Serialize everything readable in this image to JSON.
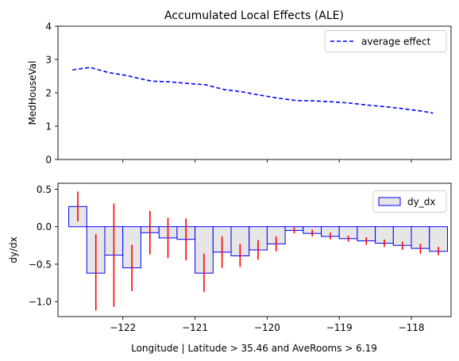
{
  "chart_data": [
    {
      "type": "line",
      "title": "Accumulated Local Effects (ALE)",
      "ylabel": "MedHouseVal",
      "xlabel": "",
      "xlim": [
        -122.9,
        -117.45
      ],
      "ylim": [
        0,
        4
      ],
      "yticks": [
        0,
        1,
        2,
        3,
        4
      ],
      "xticks": [
        -122,
        -121,
        -120,
        -119,
        -118
      ],
      "grid": false,
      "legend": "top-right",
      "series": [
        {
          "name": "average effect",
          "color": "#0000ff",
          "style": "dashed",
          "x": [
            -122.7,
            -122.45,
            -122.2,
            -121.95,
            -121.75,
            -121.6,
            -121.35,
            -121.1,
            -120.85,
            -120.6,
            -120.35,
            -120.1,
            -119.85,
            -119.6,
            -119.35,
            -119.1,
            -118.85,
            -118.6,
            -118.35,
            -118.1,
            -117.85,
            -117.7
          ],
          "y": [
            2.69,
            2.76,
            2.61,
            2.52,
            2.42,
            2.35,
            2.33,
            2.28,
            2.24,
            2.1,
            2.03,
            1.93,
            1.84,
            1.77,
            1.76,
            1.73,
            1.69,
            1.63,
            1.58,
            1.52,
            1.45,
            1.39
          ]
        }
      ]
    },
    {
      "type": "bar",
      "ylabel": "dy/dx",
      "xlabel": "Longitude | Latitude > 35.46 and AveRooms > 6.19",
      "xlim": [
        -122.9,
        -117.45
      ],
      "ylim": [
        -1.2,
        0.58
      ],
      "yticks": [
        0.5,
        0.0,
        -0.5,
        -1.0
      ],
      "ytick_labels": [
        "0.5",
        "0.0",
        "−0.5",
        "−1.0"
      ],
      "xticks": [
        -122,
        -121,
        -120,
        -119,
        -118
      ],
      "xtick_labels": [
        "−122",
        "−121",
        "−120",
        "−119",
        "−118"
      ],
      "grid": false,
      "legend": "top-right",
      "series": [
        {
          "name": "dy_dx",
          "fill": "#e6e6e6",
          "edge": "#0000ff",
          "error_color": "#ff0000",
          "bars": [
            {
              "x0": -122.75,
              "x1": -122.5,
              "value": 0.27,
              "low": 0.07,
              "high": 0.47
            },
            {
              "x0": -122.5,
              "x1": -122.25,
              "value": -0.62,
              "low": -1.12,
              "high": -0.1
            },
            {
              "x0": -122.25,
              "x1": -122.0,
              "value": -0.38,
              "low": -1.07,
              "high": 0.31
            },
            {
              "x0": -122.0,
              "x1": -121.75,
              "value": -0.55,
              "low": -0.86,
              "high": -0.24
            },
            {
              "x0": -121.75,
              "x1": -121.5,
              "value": -0.08,
              "low": -0.37,
              "high": 0.21
            },
            {
              "x0": -121.5,
              "x1": -121.25,
              "value": -0.15,
              "low": -0.42,
              "high": 0.12
            },
            {
              "x0": -121.25,
              "x1": -121.0,
              "value": -0.17,
              "low": -0.45,
              "high": 0.11
            },
            {
              "x0": -121.0,
              "x1": -120.75,
              "value": -0.62,
              "low": -0.87,
              "high": -0.36
            },
            {
              "x0": -120.75,
              "x1": -120.5,
              "value": -0.34,
              "low": -0.55,
              "high": -0.13
            },
            {
              "x0": -120.5,
              "x1": -120.25,
              "value": -0.39,
              "low": -0.54,
              "high": -0.23
            },
            {
              "x0": -120.25,
              "x1": -120.0,
              "value": -0.31,
              "low": -0.44,
              "high": -0.18
            },
            {
              "x0": -120.0,
              "x1": -119.75,
              "value": -0.23,
              "low": -0.33,
              "high": -0.13
            },
            {
              "x0": -119.75,
              "x1": -119.5,
              "value": -0.05,
              "low": -0.09,
              "high": -0.01
            },
            {
              "x0": -119.5,
              "x1": -119.25,
              "value": -0.09,
              "low": -0.13,
              "high": -0.04
            },
            {
              "x0": -119.25,
              "x1": -119.0,
              "value": -0.13,
              "low": -0.17,
              "high": -0.08
            },
            {
              "x0": -119.0,
              "x1": -118.75,
              "value": -0.16,
              "low": -0.2,
              "high": -0.12
            },
            {
              "x0": -118.75,
              "x1": -118.5,
              "value": -0.19,
              "low": -0.24,
              "high": -0.14
            },
            {
              "x0": -118.5,
              "x1": -118.25,
              "value": -0.22,
              "low": -0.27,
              "high": -0.17
            },
            {
              "x0": -118.25,
              "x1": -118.0,
              "value": -0.25,
              "low": -0.31,
              "high": -0.2
            },
            {
              "x0": -118.0,
              "x1": -117.75,
              "value": -0.29,
              "low": -0.36,
              "high": -0.23
            },
            {
              "x0": -117.75,
              "x1": -117.5,
              "value": -0.33,
              "low": -0.38,
              "high": -0.27
            }
          ]
        }
      ]
    }
  ]
}
